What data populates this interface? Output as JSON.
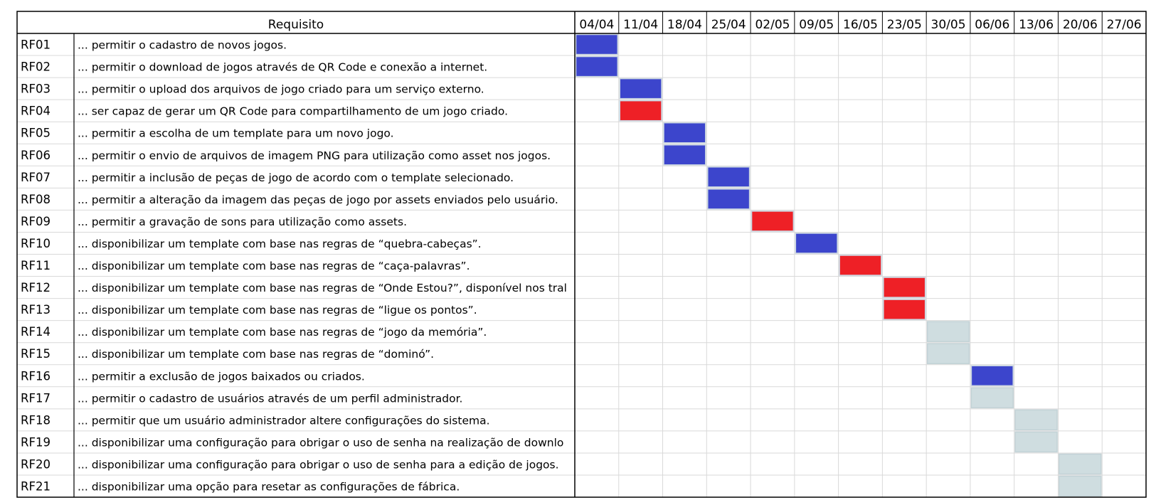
{
  "chart_data": {
    "type": "table",
    "header": {
      "requirement_label": "Requisito",
      "weeks": [
        "04/04",
        "11/04",
        "18/04",
        "25/04",
        "02/05",
        "09/05",
        "16/05",
        "23/05",
        "30/05",
        "06/06",
        "13/06",
        "20/06",
        "27/06"
      ]
    },
    "status_colors": {
      "blue": "#3c45cc",
      "red": "#ee2026",
      "gray": "#cfdde0"
    },
    "rows": [
      {
        "id": "RF01",
        "text": "... permitir o cadastro de novos jogos.",
        "week": "04/04",
        "status": "blue"
      },
      {
        "id": "RF02",
        "text": "... permitir o download de jogos através de QR Code e conexão a internet.",
        "week": "04/04",
        "status": "blue"
      },
      {
        "id": "RF03",
        "text": "... permitir o upload dos arquivos de jogo criado para um serviço externo.",
        "week": "11/04",
        "status": "blue"
      },
      {
        "id": "RF04",
        "text": "... ser capaz de gerar um QR Code para compartilhamento de um jogo criado.",
        "week": "11/04",
        "status": "red"
      },
      {
        "id": "RF05",
        "text": "... permitir a escolha de um template para um novo jogo.",
        "week": "18/04",
        "status": "blue"
      },
      {
        "id": "RF06",
        "text": "... permitir o envio de arquivos de imagem PNG para utilização como asset nos jogos.",
        "week": "18/04",
        "status": "blue"
      },
      {
        "id": "RF07",
        "text": "... permitir a inclusão de peças de jogo de acordo com o template selecionado.",
        "week": "25/04",
        "status": "blue"
      },
      {
        "id": "RF08",
        "text": "... permitir a alteração da imagem das peças de jogo por assets enviados pelo usuário.",
        "week": "25/04",
        "status": "blue"
      },
      {
        "id": "RF09",
        "text": "... permitir a gravação de sons para utilização como assets.",
        "week": "02/05",
        "status": "red"
      },
      {
        "id": "RF10",
        "text": "... disponibilizar um template com base nas regras de “quebra-cabeças”.",
        "week": "09/05",
        "status": "blue"
      },
      {
        "id": "RF11",
        "text": "... disponibilizar um template com base nas regras de “caça-palavras”.",
        "week": "16/05",
        "status": "red"
      },
      {
        "id": "RF12",
        "text": "... disponibilizar um template com base nas regras de “Onde Estou?”, disponível nos tral",
        "week": "23/05",
        "status": "red"
      },
      {
        "id": "RF13",
        "text": "... disponibilizar um template com base nas regras de “ligue os pontos”.",
        "week": "23/05",
        "status": "red"
      },
      {
        "id": "RF14",
        "text": "... disponibilizar um template com base nas regras de “jogo da memória”.",
        "week": "30/05",
        "status": "gray"
      },
      {
        "id": "RF15",
        "text": "... disponibilizar um template com base nas regras de “dominó”.",
        "week": "30/05",
        "status": "gray"
      },
      {
        "id": "RF16",
        "text": "... permitir a exclusão de jogos baixados ou criados.",
        "week": "06/06",
        "status": "blue"
      },
      {
        "id": "RF17",
        "text": "... permitir o cadastro de usuários através de um perfil administrador.",
        "week": "06/06",
        "status": "gray"
      },
      {
        "id": "RF18",
        "text": "... permitir que um usuário administrador altere configurações do sistema.",
        "week": "13/06",
        "status": "gray"
      },
      {
        "id": "RF19",
        "text": "... disponibilizar uma configuração para obrigar o uso de senha na realização de downlo",
        "week": "13/06",
        "status": "gray"
      },
      {
        "id": "RF20",
        "text": "... disponibilizar uma configuração para obrigar o uso de senha para a edição de jogos.",
        "week": "20/06",
        "status": "gray"
      },
      {
        "id": "RF21",
        "text": "... disponibilizar uma opção para resetar as configurações de fábrica.",
        "week": "20/06",
        "status": "gray"
      }
    ]
  }
}
